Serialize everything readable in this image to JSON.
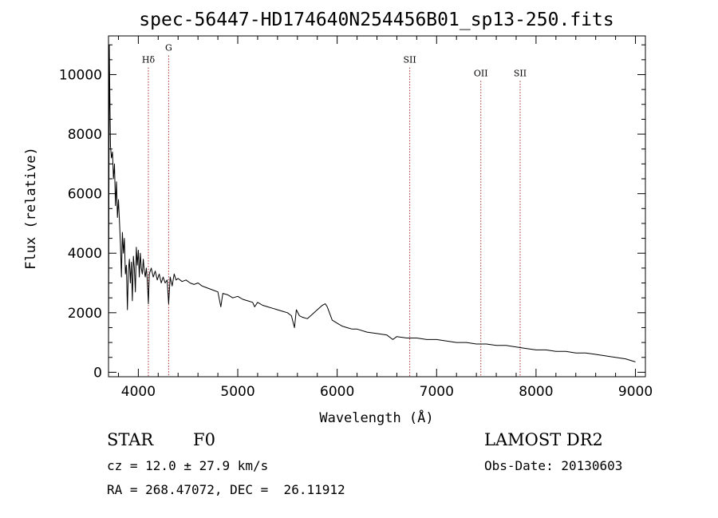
{
  "chart_data": {
    "type": "line",
    "title": "spec-56447-HD174640N254456B01_sp13-250.fits",
    "xlabel": "Wavelength (Å)",
    "ylabel": "Flux (relative)",
    "xlim": [
      3700,
      9100
    ],
    "ylim": [
      -150,
      11300
    ],
    "xticks": [
      4000,
      5000,
      6000,
      7000,
      8000,
      9000
    ],
    "yticks": [
      0,
      2000,
      4000,
      6000,
      8000,
      10000
    ],
    "grid": false,
    "series": [
      {
        "points": [
          [
            3700,
            700
          ],
          [
            3708,
            11000
          ],
          [
            3714,
            9200
          ],
          [
            3720,
            7600
          ],
          [
            3730,
            7200
          ],
          [
            3740,
            7400
          ],
          [
            3750,
            6500
          ],
          [
            3760,
            7000
          ],
          [
            3770,
            5600
          ],
          [
            3780,
            6400
          ],
          [
            3790,
            5200
          ],
          [
            3800,
            5800
          ],
          [
            3810,
            5100
          ],
          [
            3820,
            4300
          ],
          [
            3830,
            3200
          ],
          [
            3840,
            4700
          ],
          [
            3850,
            4000
          ],
          [
            3860,
            4500
          ],
          [
            3870,
            3300
          ],
          [
            3880,
            3600
          ],
          [
            3890,
            2100
          ],
          [
            3900,
            3400
          ],
          [
            3910,
            3800
          ],
          [
            3920,
            3000
          ],
          [
            3930,
            3700
          ],
          [
            3940,
            2400
          ],
          [
            3950,
            3900
          ],
          [
            3960,
            3500
          ],
          [
            3970,
            2700
          ],
          [
            3980,
            4200
          ],
          [
            3990,
            3600
          ],
          [
            4000,
            4100
          ],
          [
            4010,
            3200
          ],
          [
            4020,
            4000
          ],
          [
            4030,
            3500
          ],
          [
            4040,
            3300
          ],
          [
            4050,
            3800
          ],
          [
            4060,
            3400
          ],
          [
            4070,
            3200
          ],
          [
            4080,
            3500
          ],
          [
            4090,
            3100
          ],
          [
            4101,
            2300
          ],
          [
            4110,
            3300
          ],
          [
            4130,
            3500
          ],
          [
            4150,
            3200
          ],
          [
            4170,
            3400
          ],
          [
            4190,
            3100
          ],
          [
            4210,
            3300
          ],
          [
            4230,
            3000
          ],
          [
            4250,
            3200
          ],
          [
            4270,
            3000
          ],
          [
            4290,
            3100
          ],
          [
            4305,
            2300
          ],
          [
            4320,
            3200
          ],
          [
            4340,
            2900
          ],
          [
            4360,
            3300
          ],
          [
            4380,
            3100
          ],
          [
            4400,
            3150
          ],
          [
            4440,
            3050
          ],
          [
            4480,
            3100
          ],
          [
            4520,
            3000
          ],
          [
            4560,
            2950
          ],
          [
            4600,
            3000
          ],
          [
            4640,
            2900
          ],
          [
            4680,
            2850
          ],
          [
            4720,
            2800
          ],
          [
            4760,
            2750
          ],
          [
            4800,
            2700
          ],
          [
            4830,
            2200
          ],
          [
            4850,
            2650
          ],
          [
            4900,
            2600
          ],
          [
            4950,
            2500
          ],
          [
            5000,
            2550
          ],
          [
            5050,
            2450
          ],
          [
            5100,
            2400
          ],
          [
            5150,
            2350
          ],
          [
            5170,
            2200
          ],
          [
            5200,
            2350
          ],
          [
            5250,
            2250
          ],
          [
            5300,
            2200
          ],
          [
            5350,
            2150
          ],
          [
            5400,
            2100
          ],
          [
            5450,
            2050
          ],
          [
            5500,
            2000
          ],
          [
            5540,
            1900
          ],
          [
            5570,
            1500
          ],
          [
            5590,
            2100
          ],
          [
            5620,
            1900
          ],
          [
            5650,
            1850
          ],
          [
            5700,
            1800
          ],
          [
            5750,
            1950
          ],
          [
            5800,
            2100
          ],
          [
            5850,
            2250
          ],
          [
            5880,
            2300
          ],
          [
            5900,
            2200
          ],
          [
            5950,
            1750
          ],
          [
            6000,
            1650
          ],
          [
            6050,
            1550
          ],
          [
            6100,
            1500
          ],
          [
            6150,
            1450
          ],
          [
            6200,
            1450
          ],
          [
            6300,
            1350
          ],
          [
            6400,
            1300
          ],
          [
            6500,
            1250
          ],
          [
            6560,
            1100
          ],
          [
            6600,
            1200
          ],
          [
            6700,
            1150
          ],
          [
            6800,
            1150
          ],
          [
            6900,
            1100
          ],
          [
            7000,
            1100
          ],
          [
            7100,
            1050
          ],
          [
            7200,
            1000
          ],
          [
            7300,
            1000
          ],
          [
            7400,
            950
          ],
          [
            7500,
            950
          ],
          [
            7600,
            900
          ],
          [
            7700,
            900
          ],
          [
            7800,
            850
          ],
          [
            7900,
            800
          ],
          [
            8000,
            750
          ],
          [
            8100,
            750
          ],
          [
            8200,
            700
          ],
          [
            8300,
            700
          ],
          [
            8400,
            650
          ],
          [
            8500,
            650
          ],
          [
            8600,
            600
          ],
          [
            8700,
            550
          ],
          [
            8800,
            500
          ],
          [
            8900,
            450
          ],
          [
            9000,
            350
          ]
        ]
      }
    ],
    "lines": [
      {
        "label": "Hδ",
        "x": 4101,
        "label_flux": 10400
      },
      {
        "label": "G",
        "x": 4305,
        "label_flux": 10800
      },
      {
        "label": "SII",
        "x": 6730,
        "label_flux": 10400
      },
      {
        "label": "OII",
        "x": 7445,
        "label_flux": 9950
      },
      {
        "label": "SII",
        "x": 7840,
        "label_flux": 9950
      }
    ],
    "line_color": "#a52a2a"
  },
  "info": {
    "star_type": "STAR",
    "spectral_type": "F0",
    "survey": "LAMOST DR2",
    "cz": "cz = 12.0 ± 27.9 km/s",
    "obs_date": "Obs-Date: 20130603",
    "coords": "RA = 268.47072, DEC =  26.11912"
  }
}
